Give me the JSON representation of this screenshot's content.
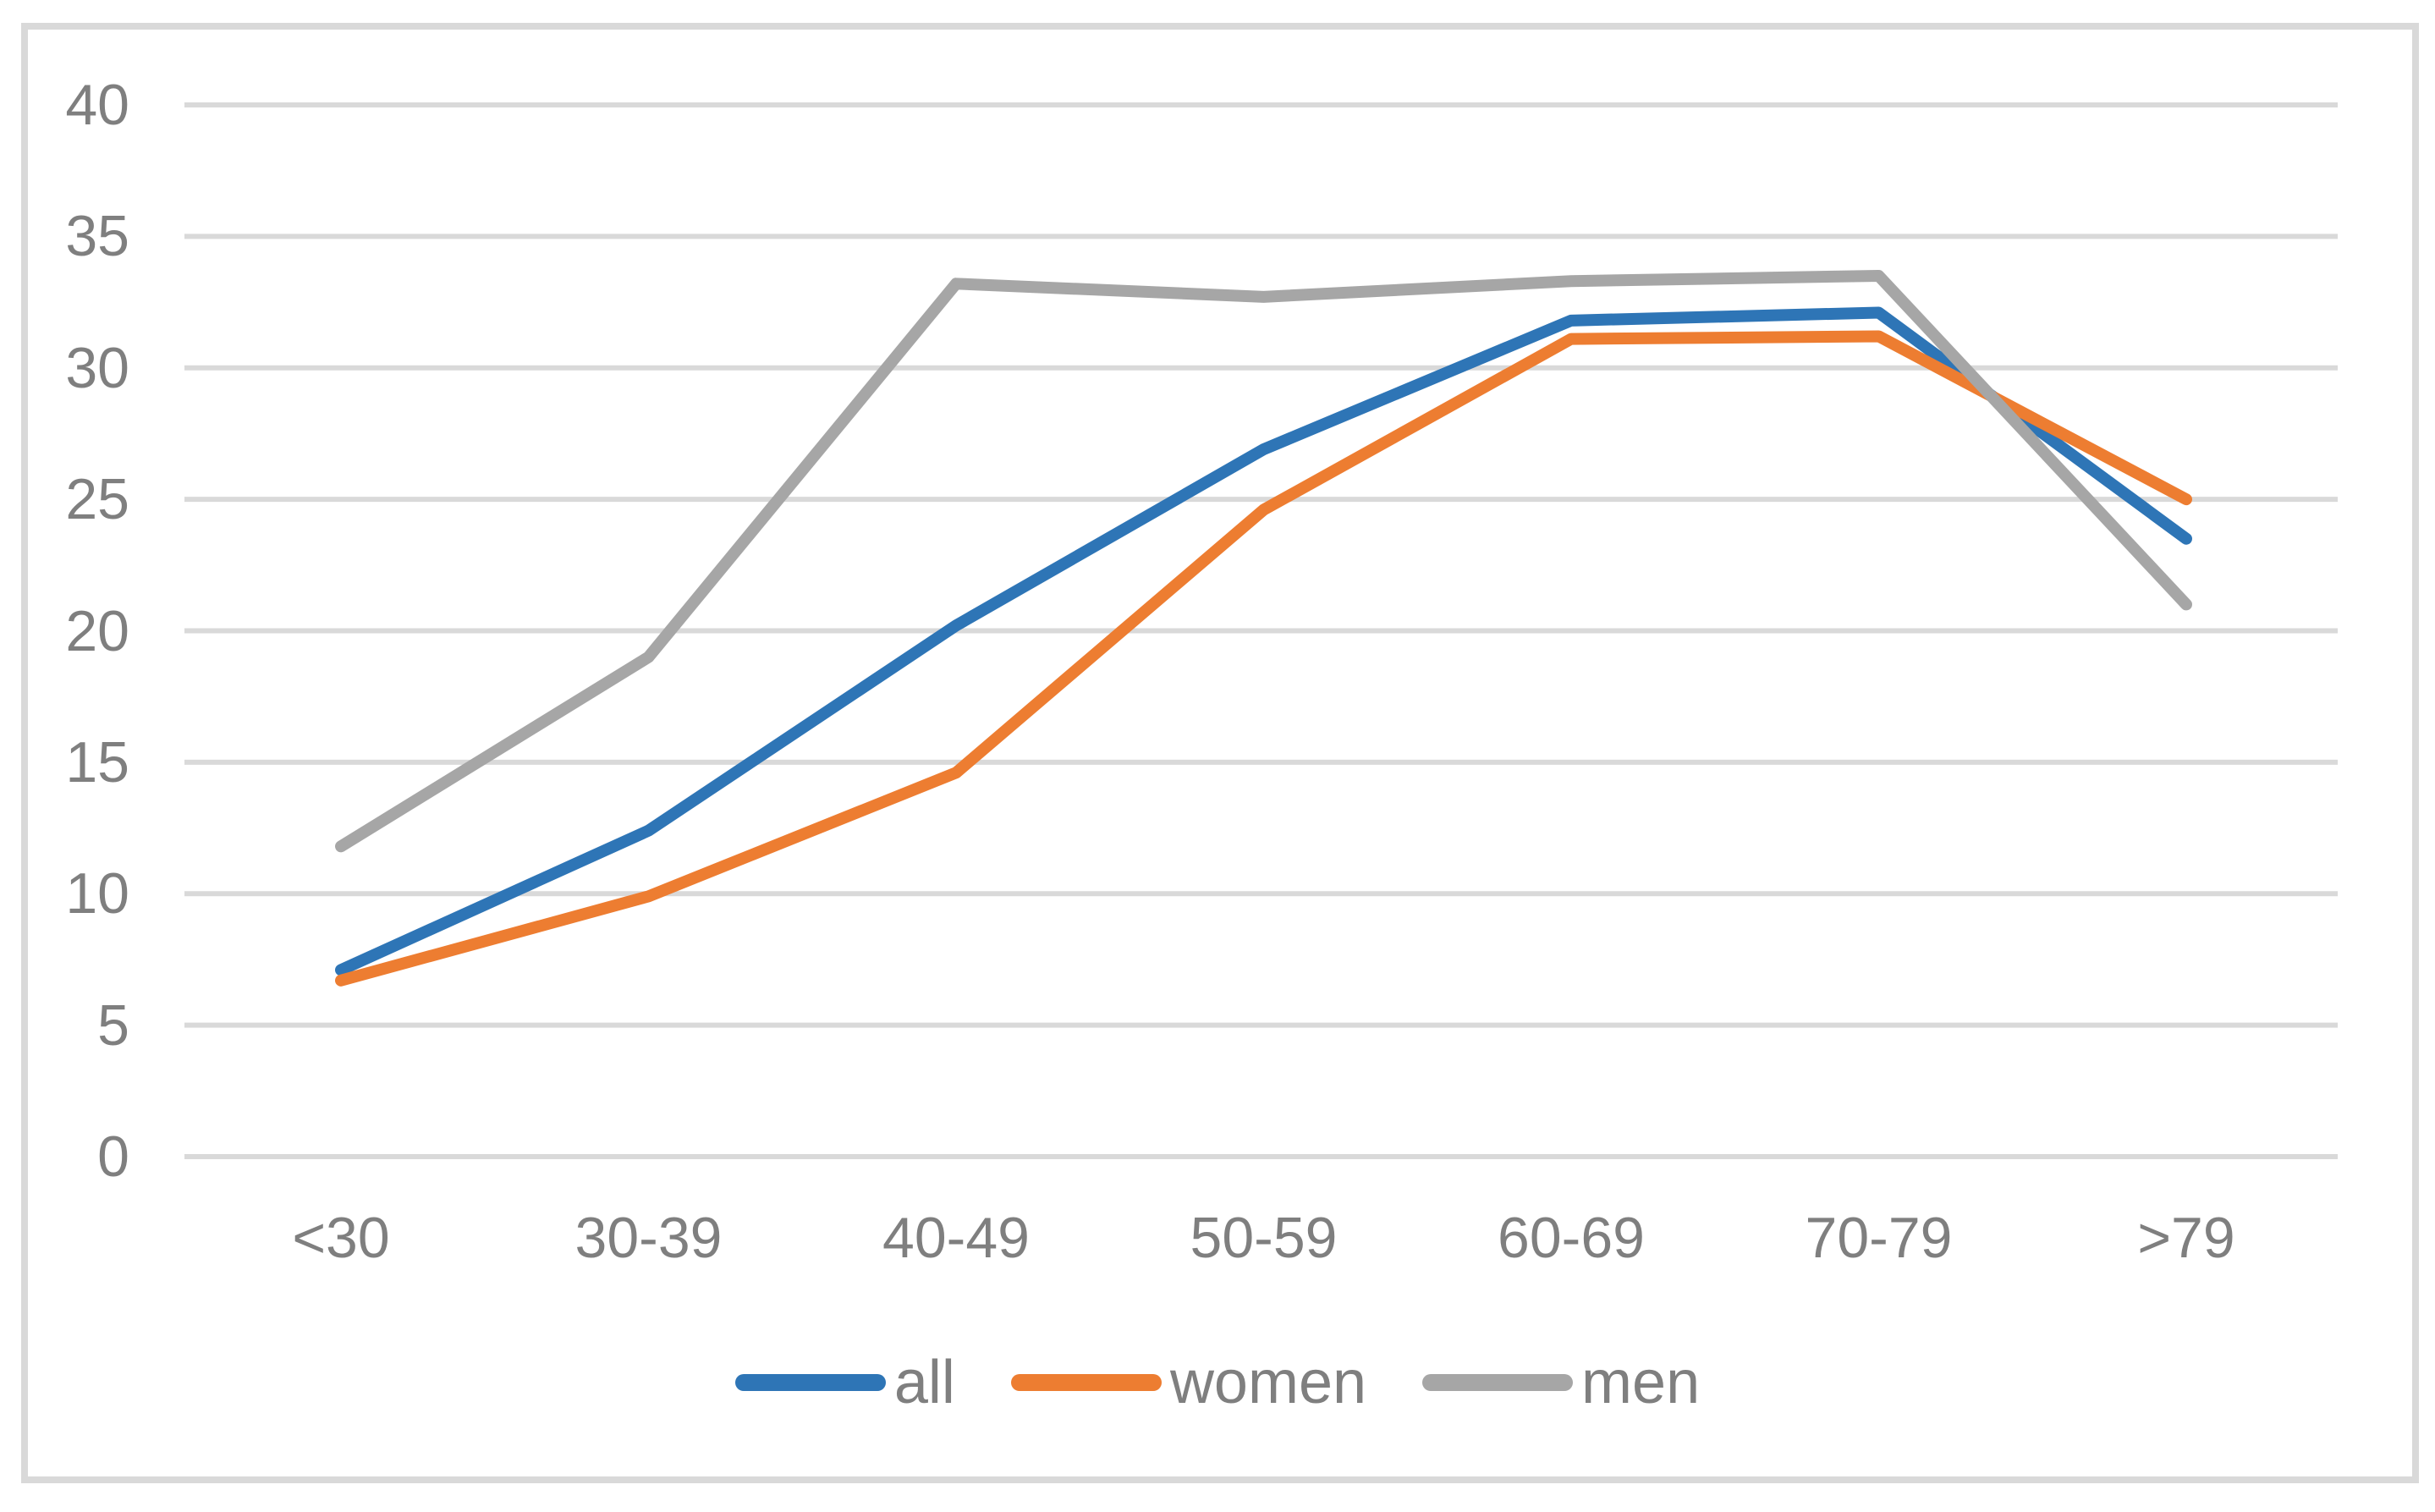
{
  "chart_data": {
    "type": "line",
    "title": "",
    "xlabel": "",
    "ylabel": "",
    "categories": [
      "<30",
      "30-39",
      "40-49",
      "50-59",
      "60-69",
      "70-79",
      ">79"
    ],
    "series": [
      {
        "name": "all",
        "color": "#2E75B6",
        "values": [
          7.1,
          12.4,
          20.2,
          26.9,
          31.8,
          32.1,
          23.5
        ]
      },
      {
        "name": "women",
        "color": "#ED7D31",
        "values": [
          6.7,
          9.9,
          14.6,
          24.6,
          31.1,
          31.2,
          25.0
        ]
      },
      {
        "name": "men",
        "color": "#A6A6A6",
        "values": [
          11.8,
          19.0,
          33.2,
          32.7,
          33.3,
          33.5,
          21.0
        ]
      }
    ],
    "ylim": [
      0,
      40
    ],
    "y_ticks": [
      0,
      5,
      10,
      15,
      20,
      25,
      30,
      35,
      40
    ],
    "grid": "horizontal",
    "legend_position": "bottom",
    "colors": {
      "gridline": "#D9D9D9",
      "frame_border": "#D9D9D9",
      "label_text": "#7F7F7F",
      "background": "#FFFFFF"
    }
  }
}
